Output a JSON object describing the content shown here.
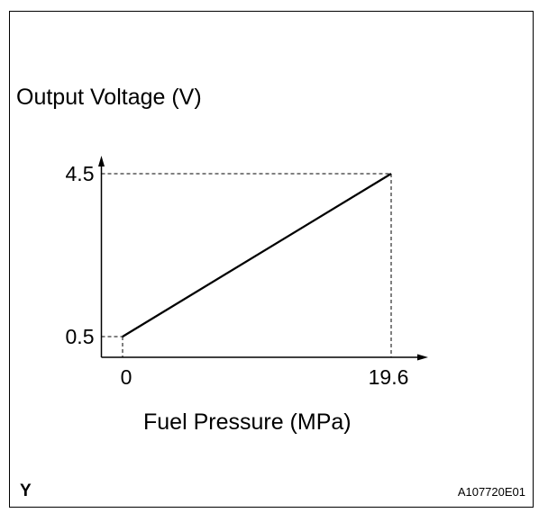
{
  "figure": {
    "corner_label_left": "Y",
    "corner_label_right": "A107720E01"
  },
  "chart_data": {
    "type": "line",
    "title": "",
    "xlabel": "Fuel Pressure (MPa)",
    "ylabel": "Output Voltage (V)",
    "x_ticks": [
      "0",
      "19.6"
    ],
    "y_ticks": [
      "4.5",
      "0.5"
    ],
    "x_tick_values": [
      0,
      19.6
    ],
    "y_tick_values": [
      4.5,
      0.5
    ],
    "series": [
      {
        "points": [
          {
            "x": 0,
            "y": 0.5
          },
          {
            "x": 19.6,
            "y": 4.5
          }
        ]
      }
    ],
    "reference_lines": "dashed",
    "grid": false,
    "legend": "none",
    "line_color": "#000000"
  }
}
